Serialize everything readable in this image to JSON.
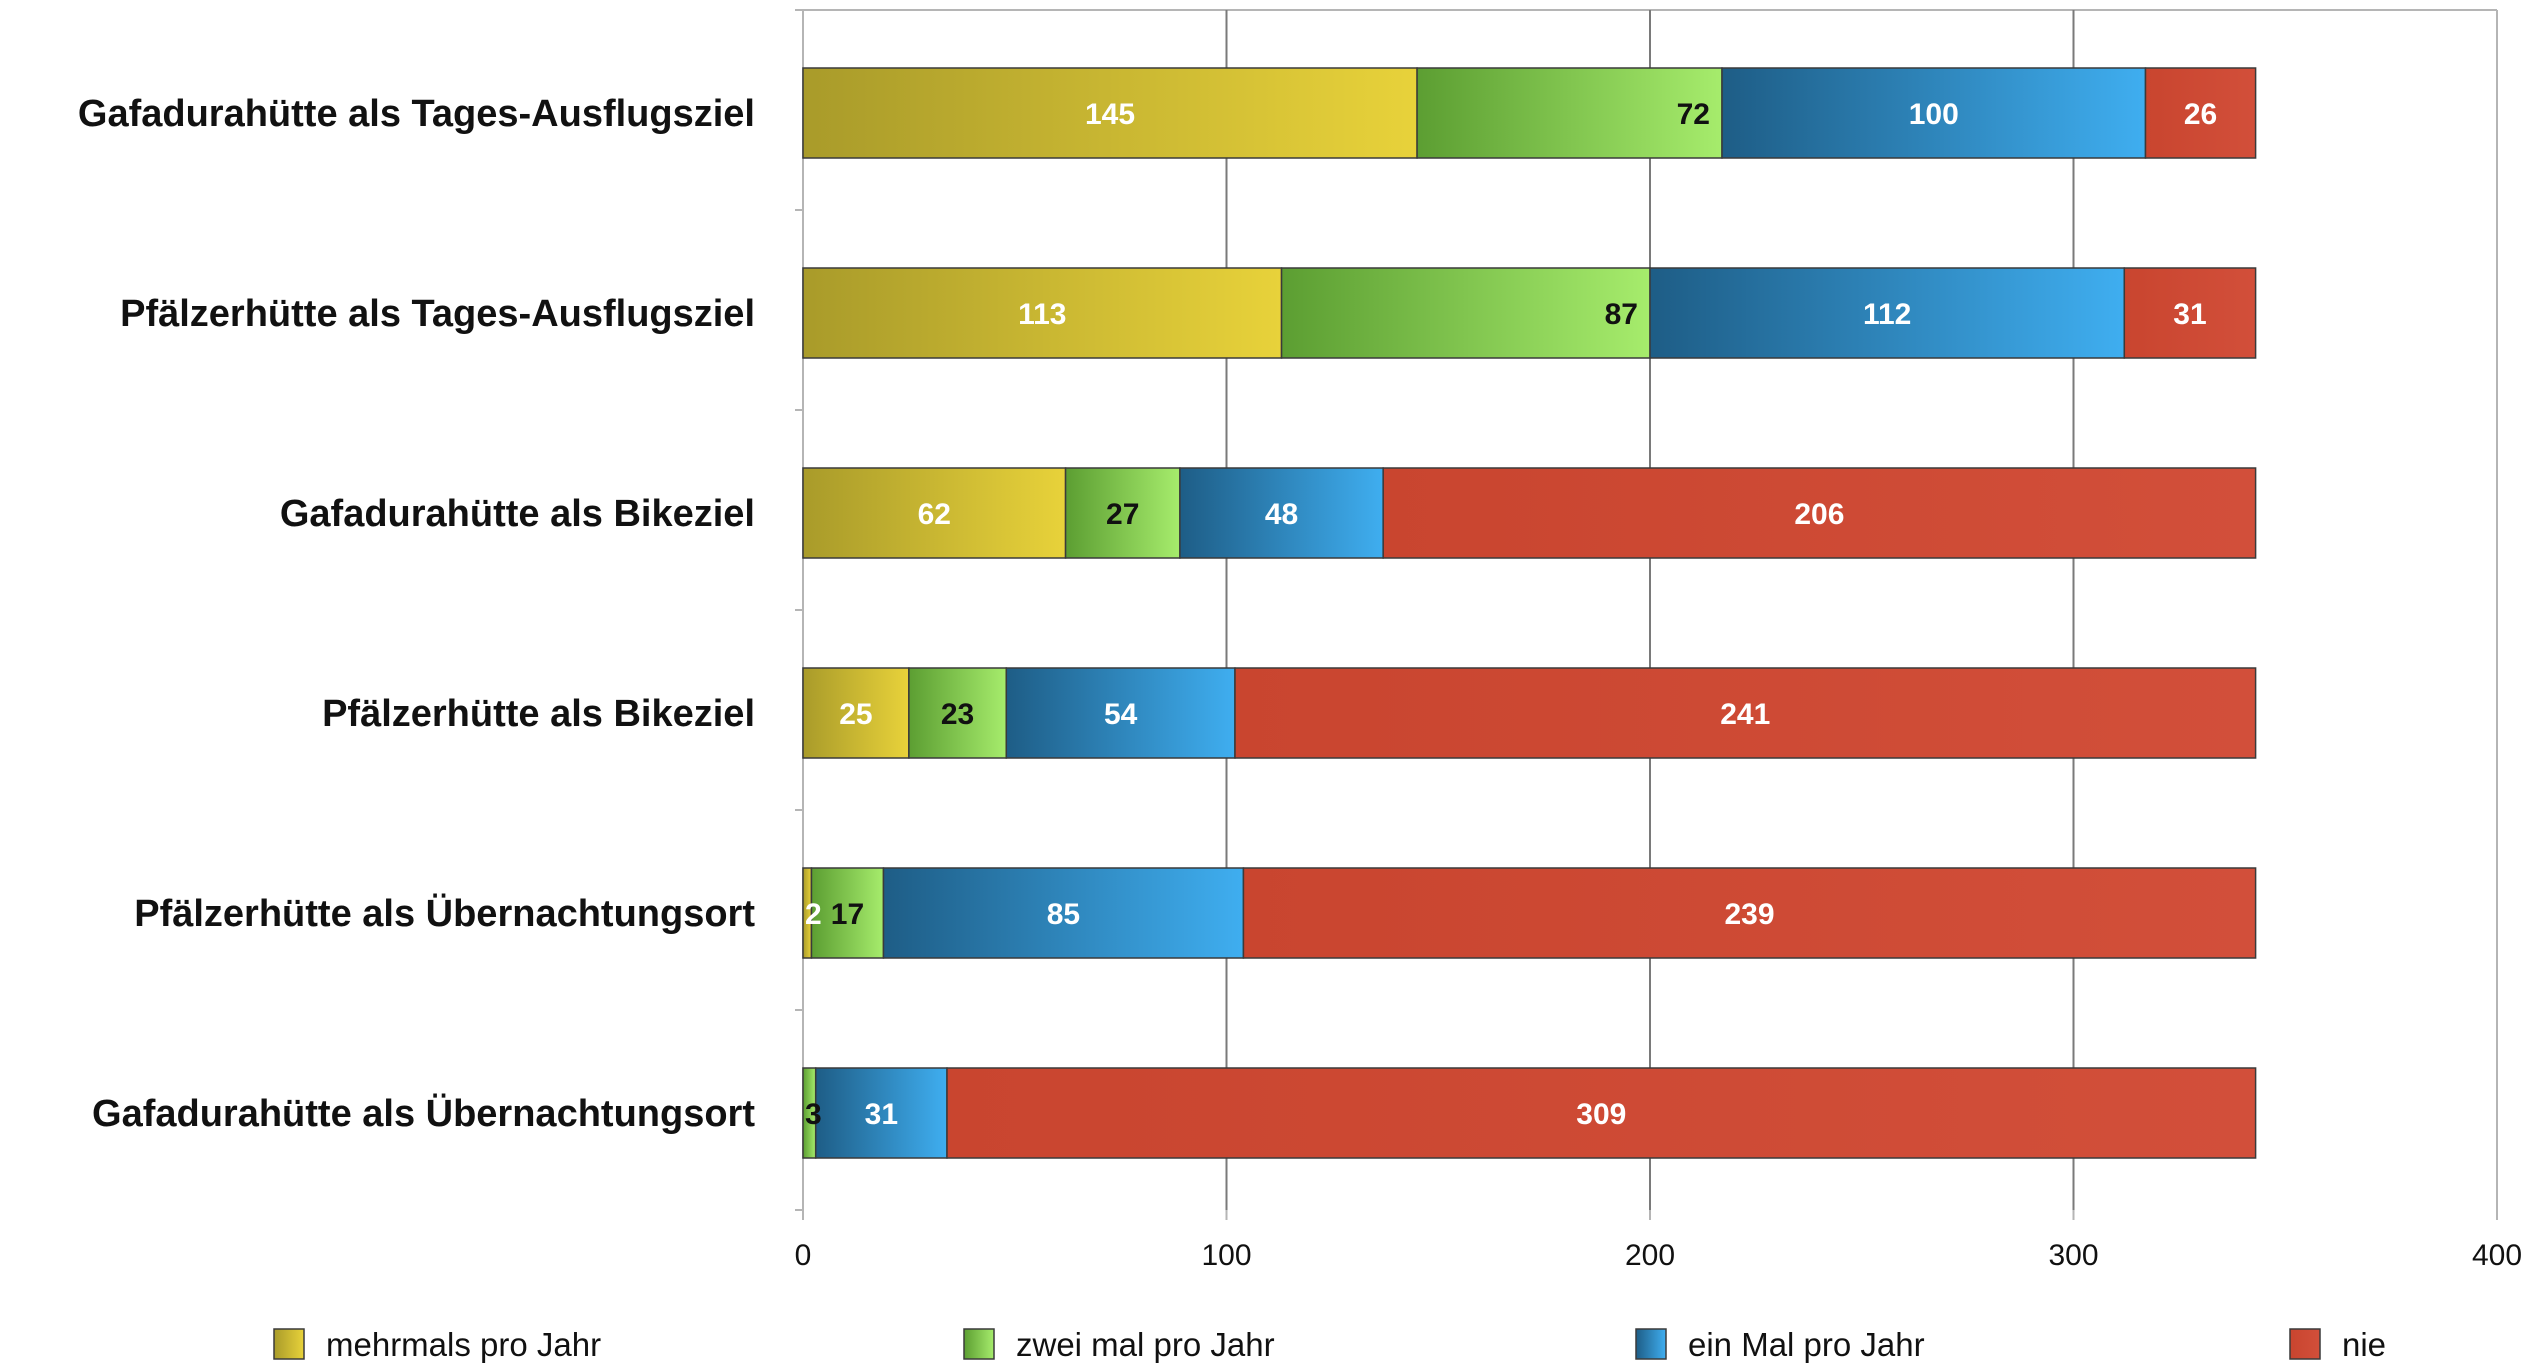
{
  "chart_data": {
    "type": "bar",
    "orientation": "horizontal",
    "stacked": true,
    "title": "",
    "xlabel": "",
    "ylabel": "",
    "xlim": [
      0,
      400
    ],
    "x_ticks": [
      0,
      100,
      200,
      300,
      400
    ],
    "x_tick_labels": [
      "0",
      "100",
      "200",
      "300",
      "400"
    ],
    "grid": true,
    "legend_position": "bottom",
    "categories": [
      "Gafadurahütte als Tages-Ausflugsziel",
      "Pfälzerhütte als Tages-Ausflugsziel",
      "Gafadurahütte als Bikeziel",
      "Pfälzerhütte als Bikeziel",
      "Pfälzerhütte als Übernachtungsort",
      "Gafadurahütte als Übernachtungsort"
    ],
    "series": [
      {
        "name": "mehrmals pro Jahr",
        "color": "#e8d23a",
        "color_dark": "#a99b2a",
        "label_color": "#ffffff",
        "values": [
          145,
          113,
          62,
          25,
          2,
          0
        ],
        "labels": [
          "145",
          "113",
          "62",
          "25",
          "2",
          ""
        ]
      },
      {
        "name": "zwei mal pro Jahr",
        "color": "#a6ec6c",
        "color_dark": "#5c9e32",
        "label_color": "#111111",
        "values": [
          72,
          87,
          27,
          23,
          17,
          3
        ],
        "labels": [
          "72",
          "87",
          "27",
          "23",
          "17",
          "3"
        ]
      },
      {
        "name": "ein Mal pro Jahr",
        "color": "#3faef0",
        "color_dark": "#1e5d86",
        "label_color": "#ffffff",
        "values": [
          100,
          112,
          48,
          54,
          85,
          31
        ],
        "labels": [
          "100",
          "112",
          "48",
          "54",
          "85",
          "31"
        ]
      },
      {
        "name": "nie",
        "color": "#d24f3a",
        "color_dark": "#c9452f",
        "label_color": "#ffffff",
        "values": [
          26,
          31,
          206,
          241,
          239,
          309
        ],
        "labels": [
          "26",
          "31",
          "206",
          "241",
          "239",
          "309"
        ]
      }
    ]
  }
}
